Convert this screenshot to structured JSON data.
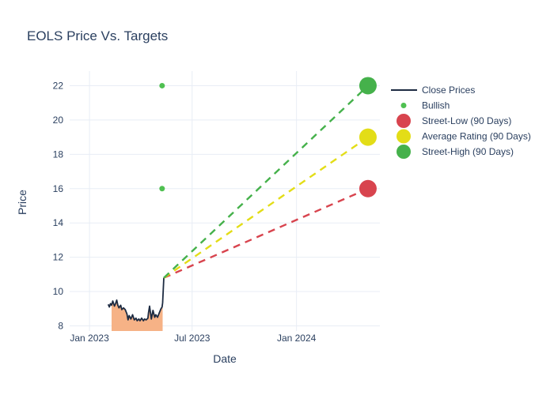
{
  "colors": {
    "background": "#ffffff",
    "text": "#2a3f5f",
    "grid": "#e8edf5",
    "close_line": "#1d2b42",
    "fill_under_close": "#f6b286",
    "bullish": "#4fc051",
    "street_low": "#d8444e",
    "average_rating": "#e3dd17",
    "street_high": "#45b14b"
  },
  "legend": {
    "items": [
      {
        "label": "Close Prices",
        "swatch": "line",
        "color": "#1d2b42"
      },
      {
        "label": "Bullish",
        "swatch": "dot-small",
        "color": "#4fc051"
      },
      {
        "label": "Street-Low (90 Days)",
        "swatch": "dot-large",
        "color": "#d8444e"
      },
      {
        "label": "Average Rating (90 Days)",
        "swatch": "dot-large",
        "color": "#e3dd17"
      },
      {
        "label": "Street-High (90 Days)",
        "swatch": "dot-large",
        "color": "#45b14b"
      }
    ]
  },
  "chart_data": {
    "type": "line",
    "title": "EOLS Price Vs. Targets",
    "xlabel": "Date",
    "ylabel": "Price",
    "x_unit": "days since 2023-01-01",
    "x_range": [
      -35,
      512
    ],
    "y_range": [
      7.7,
      22.85
    ],
    "x_ticks": [
      {
        "value": 0,
        "label": "Jan 2023"
      },
      {
        "value": 181,
        "label": "Jul 2023"
      },
      {
        "value": 365,
        "label": "Jan 2024"
      }
    ],
    "y_ticks": [
      8,
      10,
      12,
      14,
      16,
      18,
      20,
      22
    ],
    "grid": true,
    "legend_position": "right",
    "series": [
      {
        "name": "Close Prices",
        "type": "line",
        "color": "#1d2b42",
        "width": 1.8,
        "fill": {
          "color": "#f6b286",
          "from_day": 38,
          "to_day": 129
        },
        "points": [
          [
            33,
            9.25
          ],
          [
            35,
            9.1
          ],
          [
            37,
            9.3
          ],
          [
            39,
            9.2
          ],
          [
            41,
            9.45
          ],
          [
            44,
            9.15
          ],
          [
            46,
            9.3
          ],
          [
            48,
            9.5
          ],
          [
            50,
            9.2
          ],
          [
            52,
            9.05
          ],
          [
            55,
            9.2
          ],
          [
            57,
            8.95
          ],
          [
            60,
            9.05
          ],
          [
            63,
            8.95
          ],
          [
            66,
            8.7
          ],
          [
            68,
            8.35
          ],
          [
            70,
            8.6
          ],
          [
            73,
            8.4
          ],
          [
            76,
            8.65
          ],
          [
            79,
            8.35
          ],
          [
            82,
            8.45
          ],
          [
            84,
            8.3
          ],
          [
            87,
            8.4
          ],
          [
            89,
            8.3
          ],
          [
            92,
            8.45
          ],
          [
            95,
            8.3
          ],
          [
            97,
            8.4
          ],
          [
            100,
            8.35
          ],
          [
            103,
            8.45
          ],
          [
            104,
            8.75
          ],
          [
            106,
            9.15
          ],
          [
            109,
            8.4
          ],
          [
            112,
            8.9
          ],
          [
            115,
            8.5
          ],
          [
            117,
            8.65
          ],
          [
            120,
            8.5
          ],
          [
            123,
            8.75
          ],
          [
            126,
            9.0
          ],
          [
            128,
            9.1
          ],
          [
            129,
            9.35
          ],
          [
            131,
            10.8
          ]
        ]
      },
      {
        "name": "Bullish",
        "type": "scatter",
        "color": "#4fc051",
        "marker_size": 3.5,
        "points": [
          [
            128,
            22
          ],
          [
            128,
            16
          ]
        ]
      },
      {
        "name": "Street-Low (90 Days)",
        "type": "line",
        "dash": "9 7",
        "color": "#d8444e",
        "width": 2.4,
        "end_marker_size": 11,
        "points": [
          [
            131,
            10.8
          ],
          [
            491,
            16
          ]
        ]
      },
      {
        "name": "Average Rating (90 Days)",
        "type": "line",
        "dash": "9 7",
        "color": "#e3dd17",
        "width": 2.4,
        "end_marker_size": 11,
        "points": [
          [
            131,
            10.8
          ],
          [
            491,
            19
          ]
        ]
      },
      {
        "name": "Street-High (90 Days)",
        "type": "line",
        "dash": "9 7",
        "color": "#45b14b",
        "width": 2.4,
        "end_marker_size": 11,
        "points": [
          [
            131,
            10.8
          ],
          [
            491,
            22
          ]
        ]
      }
    ]
  }
}
